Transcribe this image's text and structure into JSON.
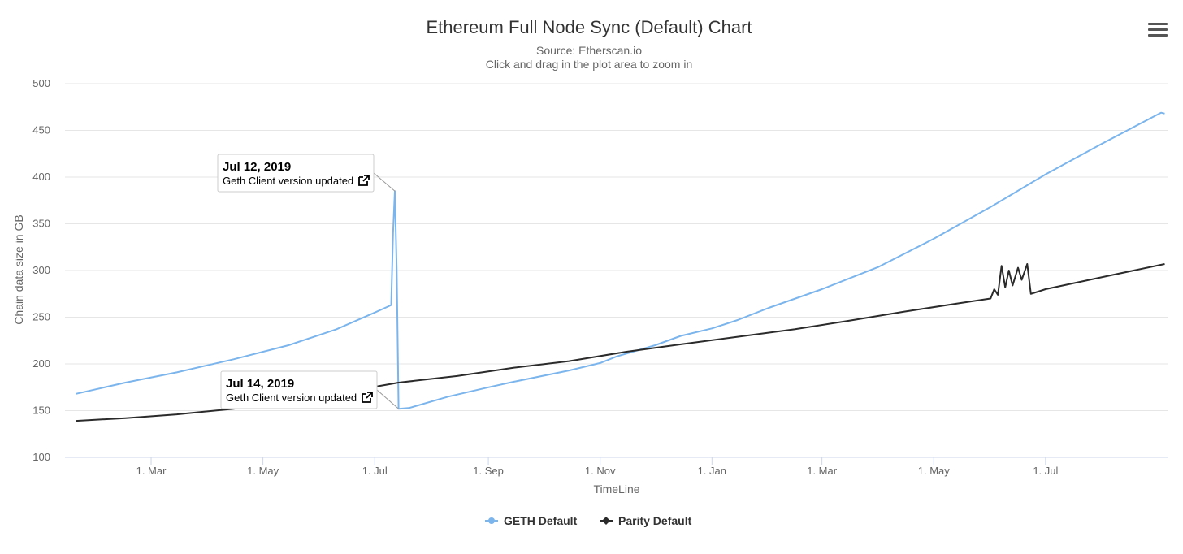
{
  "chart_data": {
    "type": "line",
    "title": "Ethereum Full Node Sync (Default) Chart",
    "subtitle_source": "Source: Etherscan.io",
    "subtitle_hint": "Click and drag in the plot area to zoom in",
    "xlabel": "TimeLine",
    "ylabel": "Chain data size in GB",
    "ylim": [
      100,
      500
    ],
    "yticks": [
      100,
      150,
      200,
      250,
      300,
      350,
      400,
      450,
      500
    ],
    "xlim": [
      "2019-01-13",
      "2020-09-06"
    ],
    "xticks": [
      {
        "date": "2019-03-01",
        "label": "1. Mar"
      },
      {
        "date": "2019-05-01",
        "label": "1. May"
      },
      {
        "date": "2019-07-01",
        "label": "1. Jul"
      },
      {
        "date": "2019-09-01",
        "label": "1. Sep"
      },
      {
        "date": "2019-11-01",
        "label": "1. Nov"
      },
      {
        "date": "2020-01-01",
        "label": "1. Jan"
      },
      {
        "date": "2020-03-01",
        "label": "1. Mar"
      },
      {
        "date": "2020-05-01",
        "label": "1. May"
      },
      {
        "date": "2020-07-01",
        "label": "1. Jul"
      }
    ],
    "grid": true,
    "legend_position": "bottom-center",
    "series": [
      {
        "name": "GETH Default",
        "color": "#7cb5ec",
        "marker": "circle",
        "points": [
          [
            "2019-01-19",
            168
          ],
          [
            "2019-02-15",
            180
          ],
          [
            "2019-03-15",
            191
          ],
          [
            "2019-04-15",
            205
          ],
          [
            "2019-05-15",
            220
          ],
          [
            "2019-06-10",
            237
          ],
          [
            "2019-07-01",
            255
          ],
          [
            "2019-07-10",
            263
          ],
          [
            "2019-07-11",
            340
          ],
          [
            "2019-07-12",
            385
          ],
          [
            "2019-07-13",
            300
          ],
          [
            "2019-07-14",
            152
          ],
          [
            "2019-07-20",
            153
          ],
          [
            "2019-08-10",
            165
          ],
          [
            "2019-09-01",
            175
          ],
          [
            "2019-09-15",
            181
          ],
          [
            "2019-10-15",
            193
          ],
          [
            "2019-11-01",
            201
          ],
          [
            "2019-11-10",
            208
          ],
          [
            "2019-12-01",
            220
          ],
          [
            "2019-12-15",
            230
          ],
          [
            "2020-01-01",
            238
          ],
          [
            "2020-01-15",
            247
          ],
          [
            "2020-02-01",
            260
          ],
          [
            "2020-03-01",
            280
          ],
          [
            "2020-04-01",
            304
          ],
          [
            "2020-05-01",
            334
          ],
          [
            "2020-06-01",
            368
          ],
          [
            "2020-07-01",
            403
          ],
          [
            "2020-08-01",
            436
          ],
          [
            "2020-09-02",
            469
          ],
          [
            "2020-09-04",
            468
          ]
        ]
      },
      {
        "name": "Parity Default",
        "color": "#2b2b2b",
        "marker": "diamond",
        "points": [
          [
            "2019-01-19",
            139
          ],
          [
            "2019-02-15",
            142
          ],
          [
            "2019-03-15",
            146
          ],
          [
            "2019-04-15",
            152
          ],
          [
            "2019-05-15",
            160
          ],
          [
            "2019-06-15",
            170
          ],
          [
            "2019-07-14",
            180
          ],
          [
            "2019-08-15",
            187
          ],
          [
            "2019-09-15",
            196
          ],
          [
            "2019-10-15",
            203
          ],
          [
            "2019-11-15",
            213
          ],
          [
            "2019-12-15",
            221
          ],
          [
            "2020-01-15",
            229
          ],
          [
            "2020-02-15",
            237
          ],
          [
            "2020-03-15",
            246
          ],
          [
            "2020-04-15",
            256
          ],
          [
            "2020-05-15",
            265
          ],
          [
            "2020-06-01",
            270
          ],
          [
            "2020-06-03",
            280
          ],
          [
            "2020-06-05",
            274
          ],
          [
            "2020-06-07",
            305
          ],
          [
            "2020-06-09",
            282
          ],
          [
            "2020-06-11",
            300
          ],
          [
            "2020-06-13",
            284
          ],
          [
            "2020-06-16",
            303
          ],
          [
            "2020-06-18",
            290
          ],
          [
            "2020-06-21",
            307
          ],
          [
            "2020-06-23",
            275
          ],
          [
            "2020-07-01",
            280
          ],
          [
            "2020-08-01",
            293
          ],
          [
            "2020-09-04",
            307
          ]
        ]
      }
    ],
    "annotations": [
      {
        "date": "2019-07-12",
        "y": 385,
        "title": "Jul 12, 2019",
        "text": "Geth Client version updated"
      },
      {
        "date": "2019-07-14",
        "y": 152,
        "title": "Jul 14, 2019",
        "text": "Geth Client version updated"
      }
    ]
  },
  "menu_icon": "hamburger-menu-icon"
}
